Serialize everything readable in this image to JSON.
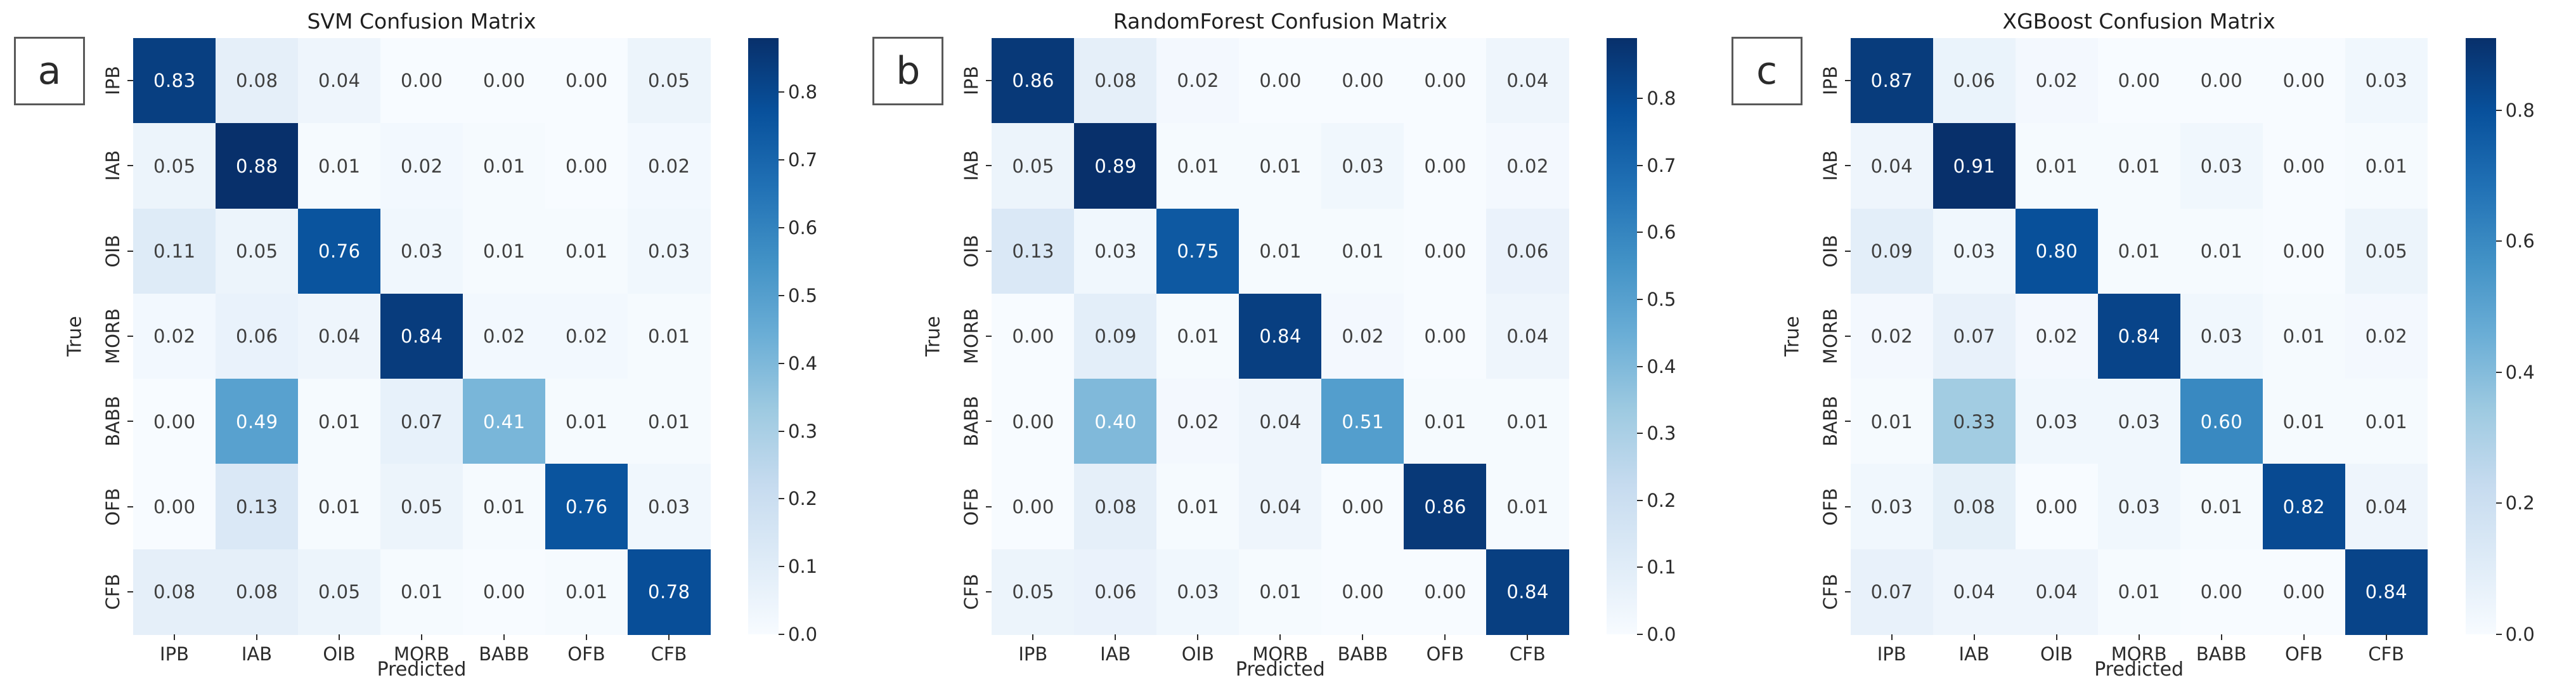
{
  "colors": {
    "background": "#ffffff",
    "colormap_name": "Blues",
    "colormap_stops": [
      [
        0.0,
        "#f7fbff"
      ],
      [
        0.125,
        "#deebf7"
      ],
      [
        0.25,
        "#c6dbef"
      ],
      [
        0.375,
        "#9ecae1"
      ],
      [
        0.5,
        "#6baed6"
      ],
      [
        0.625,
        "#4292c6"
      ],
      [
        0.75,
        "#2171b5"
      ],
      [
        0.875,
        "#08519c"
      ],
      [
        1.0,
        "#08306b"
      ]
    ],
    "cell_text_dark": "#3f3f3f",
    "cell_text_light": "#ffffff",
    "axis_text": "#2b2b2b",
    "title_text": "#1f1f1f",
    "letter_box_border": "#595959"
  },
  "chart_data": [
    {
      "type": "heatmap",
      "panel_letter": "a",
      "title": "SVM Confusion Matrix",
      "xlabel": "Predicted",
      "ylabel": "True",
      "x_tick_labels": [
        "IPB",
        "IAB",
        "OIB",
        "MORB",
        "BABB",
        "OFB",
        "CFB"
      ],
      "y_tick_labels": [
        "IPB",
        "IAB",
        "OIB",
        "MORB",
        "BABB",
        "OFB",
        "CFB"
      ],
      "values": [
        [
          0.83,
          0.08,
          0.04,
          0.0,
          0.0,
          0.0,
          0.05
        ],
        [
          0.05,
          0.88,
          0.01,
          0.02,
          0.01,
          0.0,
          0.02
        ],
        [
          0.11,
          0.05,
          0.76,
          0.03,
          0.01,
          0.01,
          0.03
        ],
        [
          0.02,
          0.06,
          0.04,
          0.84,
          0.02,
          0.02,
          0.01
        ],
        [
          0.0,
          0.49,
          0.01,
          0.07,
          0.41,
          0.01,
          0.01
        ],
        [
          0.0,
          0.13,
          0.01,
          0.05,
          0.01,
          0.76,
          0.03
        ],
        [
          0.08,
          0.08,
          0.05,
          0.01,
          0.0,
          0.01,
          0.78
        ]
      ],
      "scale_max": 0.88,
      "colorbar_ticks": [
        0.0,
        0.1,
        0.2,
        0.3,
        0.4,
        0.5,
        0.6,
        0.7,
        0.8
      ]
    },
    {
      "type": "heatmap",
      "panel_letter": "b",
      "title": "RandomForest Confusion Matrix",
      "xlabel": "Predicted",
      "ylabel": "True",
      "x_tick_labels": [
        "IPB",
        "IAB",
        "OIB",
        "MORB",
        "BABB",
        "OFB",
        "CFB"
      ],
      "y_tick_labels": [
        "IPB",
        "IAB",
        "OIB",
        "MORB",
        "BABB",
        "OFB",
        "CFB"
      ],
      "values": [
        [
          0.86,
          0.08,
          0.02,
          0.0,
          0.0,
          0.0,
          0.04
        ],
        [
          0.05,
          0.89,
          0.01,
          0.01,
          0.03,
          0.0,
          0.02
        ],
        [
          0.13,
          0.03,
          0.75,
          0.01,
          0.01,
          0.0,
          0.06
        ],
        [
          0.0,
          0.09,
          0.01,
          0.84,
          0.02,
          0.0,
          0.04
        ],
        [
          0.0,
          0.4,
          0.02,
          0.04,
          0.51,
          0.01,
          0.01
        ],
        [
          0.0,
          0.08,
          0.01,
          0.04,
          0.0,
          0.86,
          0.01
        ],
        [
          0.05,
          0.06,
          0.03,
          0.01,
          0.0,
          0.0,
          0.84
        ]
      ],
      "scale_max": 0.89,
      "colorbar_ticks": [
        0.0,
        0.1,
        0.2,
        0.3,
        0.4,
        0.5,
        0.6,
        0.7,
        0.8
      ]
    },
    {
      "type": "heatmap",
      "panel_letter": "c",
      "title": "XGBoost Confusion Matrix",
      "xlabel": "Predicted",
      "ylabel": "True",
      "x_tick_labels": [
        "IPB",
        "IAB",
        "OIB",
        "MORB",
        "BABB",
        "OFB",
        "CFB"
      ],
      "y_tick_labels": [
        "IPB",
        "IAB",
        "OIB",
        "MORB",
        "BABB",
        "OFB",
        "CFB"
      ],
      "values": [
        [
          0.87,
          0.06,
          0.02,
          0.0,
          0.0,
          0.0,
          0.03
        ],
        [
          0.04,
          0.91,
          0.01,
          0.01,
          0.03,
          0.0,
          0.01
        ],
        [
          0.09,
          0.03,
          0.8,
          0.01,
          0.01,
          0.0,
          0.05
        ],
        [
          0.02,
          0.07,
          0.02,
          0.84,
          0.03,
          0.01,
          0.02
        ],
        [
          0.01,
          0.33,
          0.03,
          0.03,
          0.6,
          0.01,
          0.01
        ],
        [
          0.03,
          0.08,
          0.0,
          0.03,
          0.01,
          0.82,
          0.04
        ],
        [
          0.07,
          0.04,
          0.04,
          0.01,
          0.0,
          0.0,
          0.84
        ]
      ],
      "scale_max": 0.91,
      "colorbar_ticks": [
        0.0,
        0.2,
        0.4,
        0.6,
        0.8
      ]
    }
  ]
}
